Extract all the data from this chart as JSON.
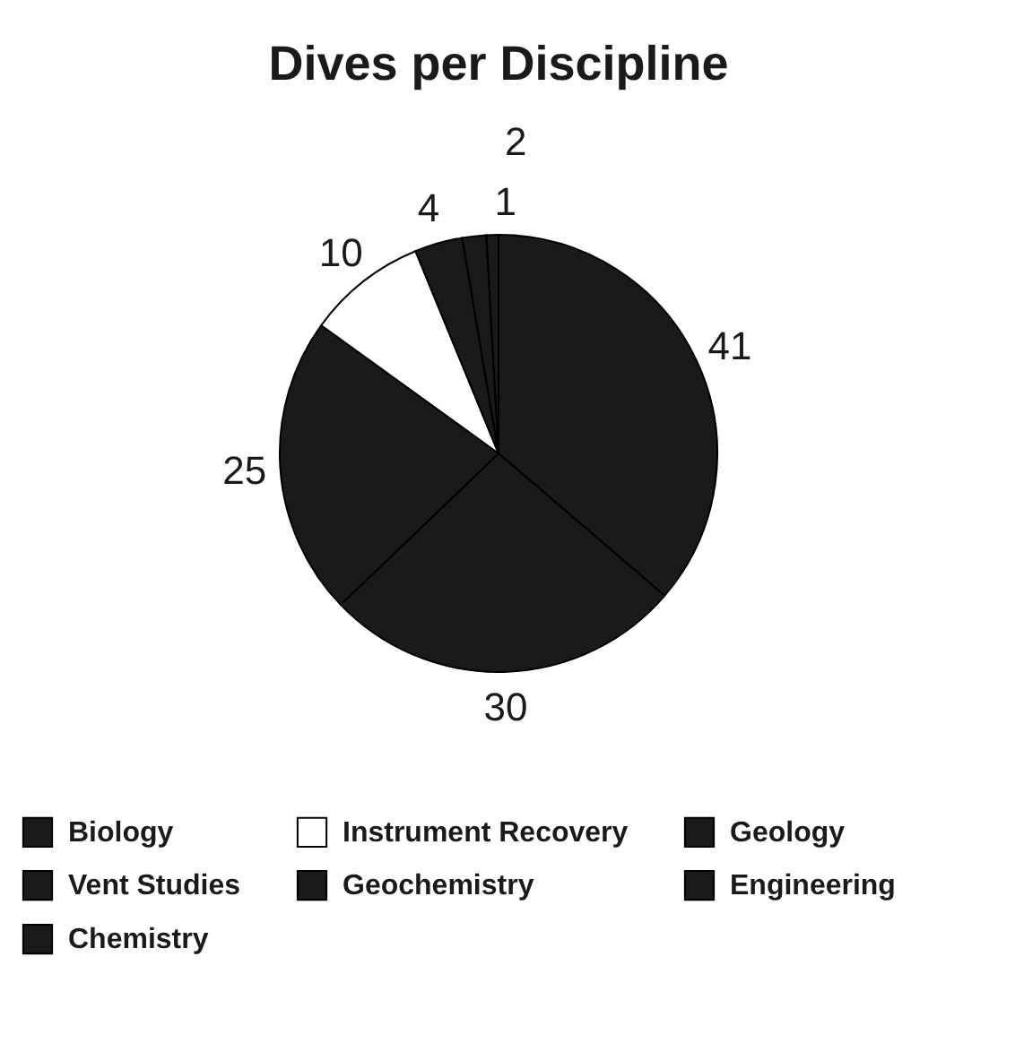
{
  "chart_data": {
    "type": "pie",
    "title": "Dives per Discipline",
    "categories": [
      "Biology",
      "Vent Studies",
      "Chemistry",
      "Instrument Recovery",
      "Geochemistry",
      "Geology",
      "Engineering"
    ],
    "values": [
      41,
      30,
      25,
      10,
      4,
      2,
      1
    ],
    "colors": [
      "#1a1a1a",
      "#1a1a1a",
      "#1a1a1a",
      "#ffffff",
      "#1a1a1a",
      "#1a1a1a",
      "#1a1a1a"
    ],
    "data_labels": true,
    "legend": "bottom"
  }
}
